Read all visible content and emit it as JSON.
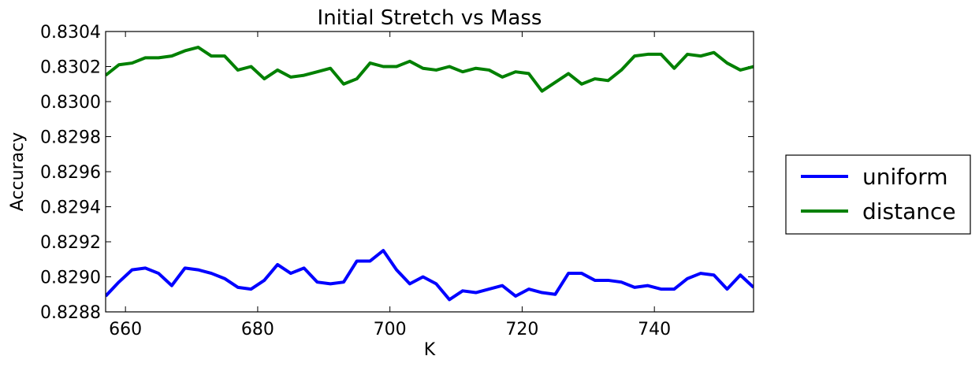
{
  "chart_data": {
    "type": "line",
    "title": "Initial Stretch vs Mass",
    "xlabel": "K",
    "ylabel": "Accuracy",
    "xlim": [
      657,
      755
    ],
    "ylim": [
      0.8288,
      0.8304
    ],
    "xticks": [
      660,
      680,
      700,
      720,
      740
    ],
    "yticks": [
      "0.8288",
      "0.8290",
      "0.8292",
      "0.8294",
      "0.8296",
      "0.8298",
      "0.8300",
      "0.8302",
      "0.8304"
    ],
    "legend_position": "right-outside",
    "x": [
      657,
      659,
      661,
      663,
      665,
      667,
      669,
      671,
      673,
      675,
      677,
      679,
      681,
      683,
      685,
      687,
      689,
      691,
      693,
      695,
      697,
      699,
      701,
      703,
      705,
      707,
      709,
      711,
      713,
      715,
      717,
      719,
      721,
      723,
      725,
      727,
      729,
      731,
      733,
      735,
      737,
      739,
      741,
      743,
      745,
      747,
      749,
      751,
      753,
      755
    ],
    "series": [
      {
        "name": "uniform",
        "color": "#0000ff",
        "values": [
          0.82889,
          0.82897,
          0.82904,
          0.82905,
          0.82902,
          0.82895,
          0.82905,
          0.82904,
          0.82902,
          0.82899,
          0.82894,
          0.82893,
          0.82898,
          0.82907,
          0.82902,
          0.82905,
          0.82897,
          0.82896,
          0.82897,
          0.82909,
          0.82909,
          0.82915,
          0.82904,
          0.82896,
          0.829,
          0.82896,
          0.82887,
          0.82892,
          0.82891,
          0.82893,
          0.82895,
          0.82889,
          0.82893,
          0.82891,
          0.8289,
          0.82902,
          0.82902,
          0.82898,
          0.82898,
          0.82897,
          0.82894,
          0.82895,
          0.82893,
          0.82893,
          0.82899,
          0.82902,
          0.82901,
          0.82893,
          0.82901,
          0.82894
        ]
      },
      {
        "name": "distance",
        "color": "#008000",
        "values": [
          0.83015,
          0.83021,
          0.83022,
          0.83025,
          0.83025,
          0.83026,
          0.83029,
          0.83031,
          0.83026,
          0.83026,
          0.83018,
          0.8302,
          0.83013,
          0.83018,
          0.83014,
          0.83015,
          0.83017,
          0.83019,
          0.8301,
          0.83013,
          0.83022,
          0.8302,
          0.8302,
          0.83023,
          0.83019,
          0.83018,
          0.8302,
          0.83017,
          0.83019,
          0.83018,
          0.83014,
          0.83017,
          0.83016,
          0.83006,
          0.83011,
          0.83016,
          0.8301,
          0.83013,
          0.83012,
          0.83018,
          0.83026,
          0.83027,
          0.83027,
          0.83019,
          0.83027,
          0.83026,
          0.83028,
          0.83022,
          0.83018,
          0.8302
        ]
      }
    ]
  }
}
